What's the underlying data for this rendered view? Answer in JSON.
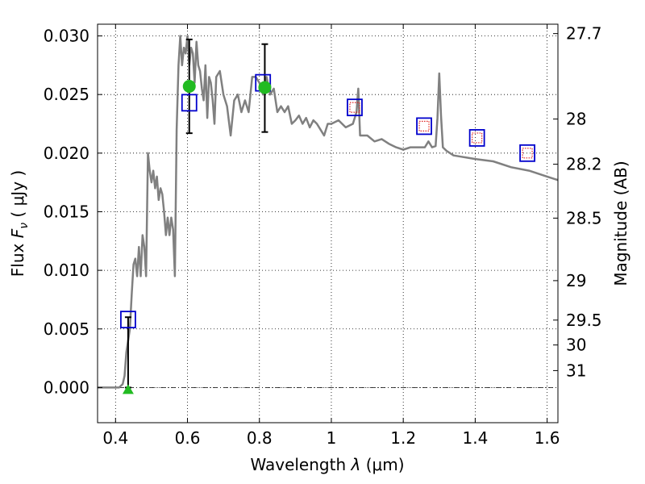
{
  "chart_data": {
    "type": "line",
    "xlabel_text": "Wavelength",
    "xlabel_symbol": "λ",
    "xlabel_unit": "(μm)",
    "ylabel_text": "Flux",
    "ylabel_symbol": "F",
    "ylabel_sub": "ν",
    "ylabel_unit": "( μJy )",
    "y2label": "Magnitude (AB)",
    "xlim": [
      0.35,
      1.63
    ],
    "ylim": [
      -0.003,
      0.031
    ],
    "x_ticks": [
      0.4,
      0.6,
      0.8,
      1.0,
      1.2,
      1.4,
      1.6
    ],
    "x_tick_labels": [
      "0.4",
      "0.6",
      "0.8",
      "1",
      "1.2",
      "1.4",
      "1.6"
    ],
    "y_ticks": [
      0.0,
      0.005,
      0.01,
      0.015,
      0.02,
      0.025,
      0.03
    ],
    "y_tick_labels": [
      "0.000",
      "0.005",
      "0.010",
      "0.015",
      "0.020",
      "0.025",
      "0.030"
    ],
    "mag_ticks": [
      27.7,
      28,
      28.2,
      28.5,
      29,
      29.5,
      30,
      31
    ],
    "mag_tick_labels": [
      "27.7",
      "28",
      "28.2",
      "28.5",
      "29",
      "29.5",
      "30",
      "31"
    ],
    "grid": true,
    "colors": {
      "sed": "#808080",
      "model_box": "#0000cc",
      "synthetic_box": "#dd2222",
      "detection": "#22bb22",
      "errorbar": "#000000",
      "zero_line": "#000000"
    },
    "series": [
      {
        "name": "SED model",
        "x": [
          0.35,
          0.41,
          0.42,
          0.425,
          0.43,
          0.44,
          0.445,
          0.45,
          0.455,
          0.46,
          0.465,
          0.47,
          0.475,
          0.48,
          0.485,
          0.49,
          0.495,
          0.5,
          0.505,
          0.51,
          0.515,
          0.52,
          0.525,
          0.53,
          0.535,
          0.54,
          0.545,
          0.55,
          0.555,
          0.56,
          0.565,
          0.57,
          0.575,
          0.58,
          0.585,
          0.59,
          0.595,
          0.6,
          0.605,
          0.61,
          0.615,
          0.62,
          0.625,
          0.63,
          0.635,
          0.64,
          0.645,
          0.65,
          0.655,
          0.66,
          0.665,
          0.67,
          0.675,
          0.68,
          0.69,
          0.7,
          0.71,
          0.72,
          0.73,
          0.74,
          0.75,
          0.76,
          0.77,
          0.78,
          0.79,
          0.8,
          0.81,
          0.82,
          0.83,
          0.84,
          0.85,
          0.86,
          0.87,
          0.88,
          0.89,
          0.9,
          0.91,
          0.92,
          0.93,
          0.94,
          0.95,
          0.96,
          0.97,
          0.98,
          0.99,
          1.0,
          1.02,
          1.04,
          1.06,
          1.07,
          1.075,
          1.08,
          1.1,
          1.12,
          1.14,
          1.16,
          1.18,
          1.2,
          1.22,
          1.24,
          1.26,
          1.27,
          1.28,
          1.29,
          1.295,
          1.3,
          1.305,
          1.31,
          1.32,
          1.34,
          1.36,
          1.38,
          1.4,
          1.45,
          1.5,
          1.55,
          1.6,
          1.62,
          1.63
        ],
        "y": [
          0.0,
          0.0,
          0.0003,
          0.001,
          0.003,
          0.005,
          0.008,
          0.0105,
          0.011,
          0.0095,
          0.012,
          0.0095,
          0.013,
          0.012,
          0.0095,
          0.02,
          0.0185,
          0.0175,
          0.0185,
          0.017,
          0.018,
          0.016,
          0.017,
          0.0165,
          0.015,
          0.013,
          0.0145,
          0.013,
          0.0145,
          0.0135,
          0.0095,
          0.022,
          0.0275,
          0.03,
          0.0275,
          0.029,
          0.0285,
          0.03,
          0.0275,
          0.029,
          0.0285,
          0.026,
          0.0295,
          0.0275,
          0.027,
          0.0255,
          0.0245,
          0.0275,
          0.023,
          0.0265,
          0.026,
          0.0245,
          0.0225,
          0.0265,
          0.027,
          0.025,
          0.024,
          0.0215,
          0.0245,
          0.025,
          0.0235,
          0.0245,
          0.0235,
          0.0265,
          0.0265,
          0.026,
          0.025,
          0.0265,
          0.025,
          0.0255,
          0.0235,
          0.024,
          0.0235,
          0.024,
          0.0225,
          0.0228,
          0.0232,
          0.0225,
          0.023,
          0.0222,
          0.0228,
          0.0225,
          0.022,
          0.0215,
          0.0225,
          0.0225,
          0.0228,
          0.0222,
          0.0225,
          0.0235,
          0.0255,
          0.0215,
          0.0215,
          0.021,
          0.0212,
          0.0208,
          0.0205,
          0.0203,
          0.0205,
          0.0205,
          0.0205,
          0.021,
          0.0205,
          0.0206,
          0.023,
          0.0268,
          0.0232,
          0.0205,
          0.0202,
          0.0198,
          0.0197,
          0.0196,
          0.0195,
          0.0193,
          0.0188,
          0.0185,
          0.018,
          0.0178,
          0.0177
        ]
      },
      {
        "name": "model boxes",
        "x": [
          0.435,
          0.605,
          0.81,
          1.065,
          1.258,
          1.405,
          1.545
        ],
        "y": [
          0.0058,
          0.0243,
          0.026,
          0.0239,
          0.0223,
          0.0213,
          0.02
        ]
      },
      {
        "name": "synthetic boxes",
        "x": [
          1.065,
          1.258,
          1.405,
          1.545
        ],
        "y": [
          0.0239,
          0.0223,
          0.0213,
          0.02
        ]
      },
      {
        "name": "detections",
        "x": [
          0.605,
          0.815
        ],
        "y": [
          0.0257,
          0.0256
        ],
        "yerr_low": [
          0.0217,
          0.0218
        ],
        "yerr_high": [
          0.0297,
          0.0293
        ]
      },
      {
        "name": "upper limit",
        "x": [
          0.435
        ],
        "y": [
          -0.0002
        ],
        "yerr_low": [
          0.0
        ],
        "yerr_high": [
          0.006
        ]
      }
    ]
  }
}
